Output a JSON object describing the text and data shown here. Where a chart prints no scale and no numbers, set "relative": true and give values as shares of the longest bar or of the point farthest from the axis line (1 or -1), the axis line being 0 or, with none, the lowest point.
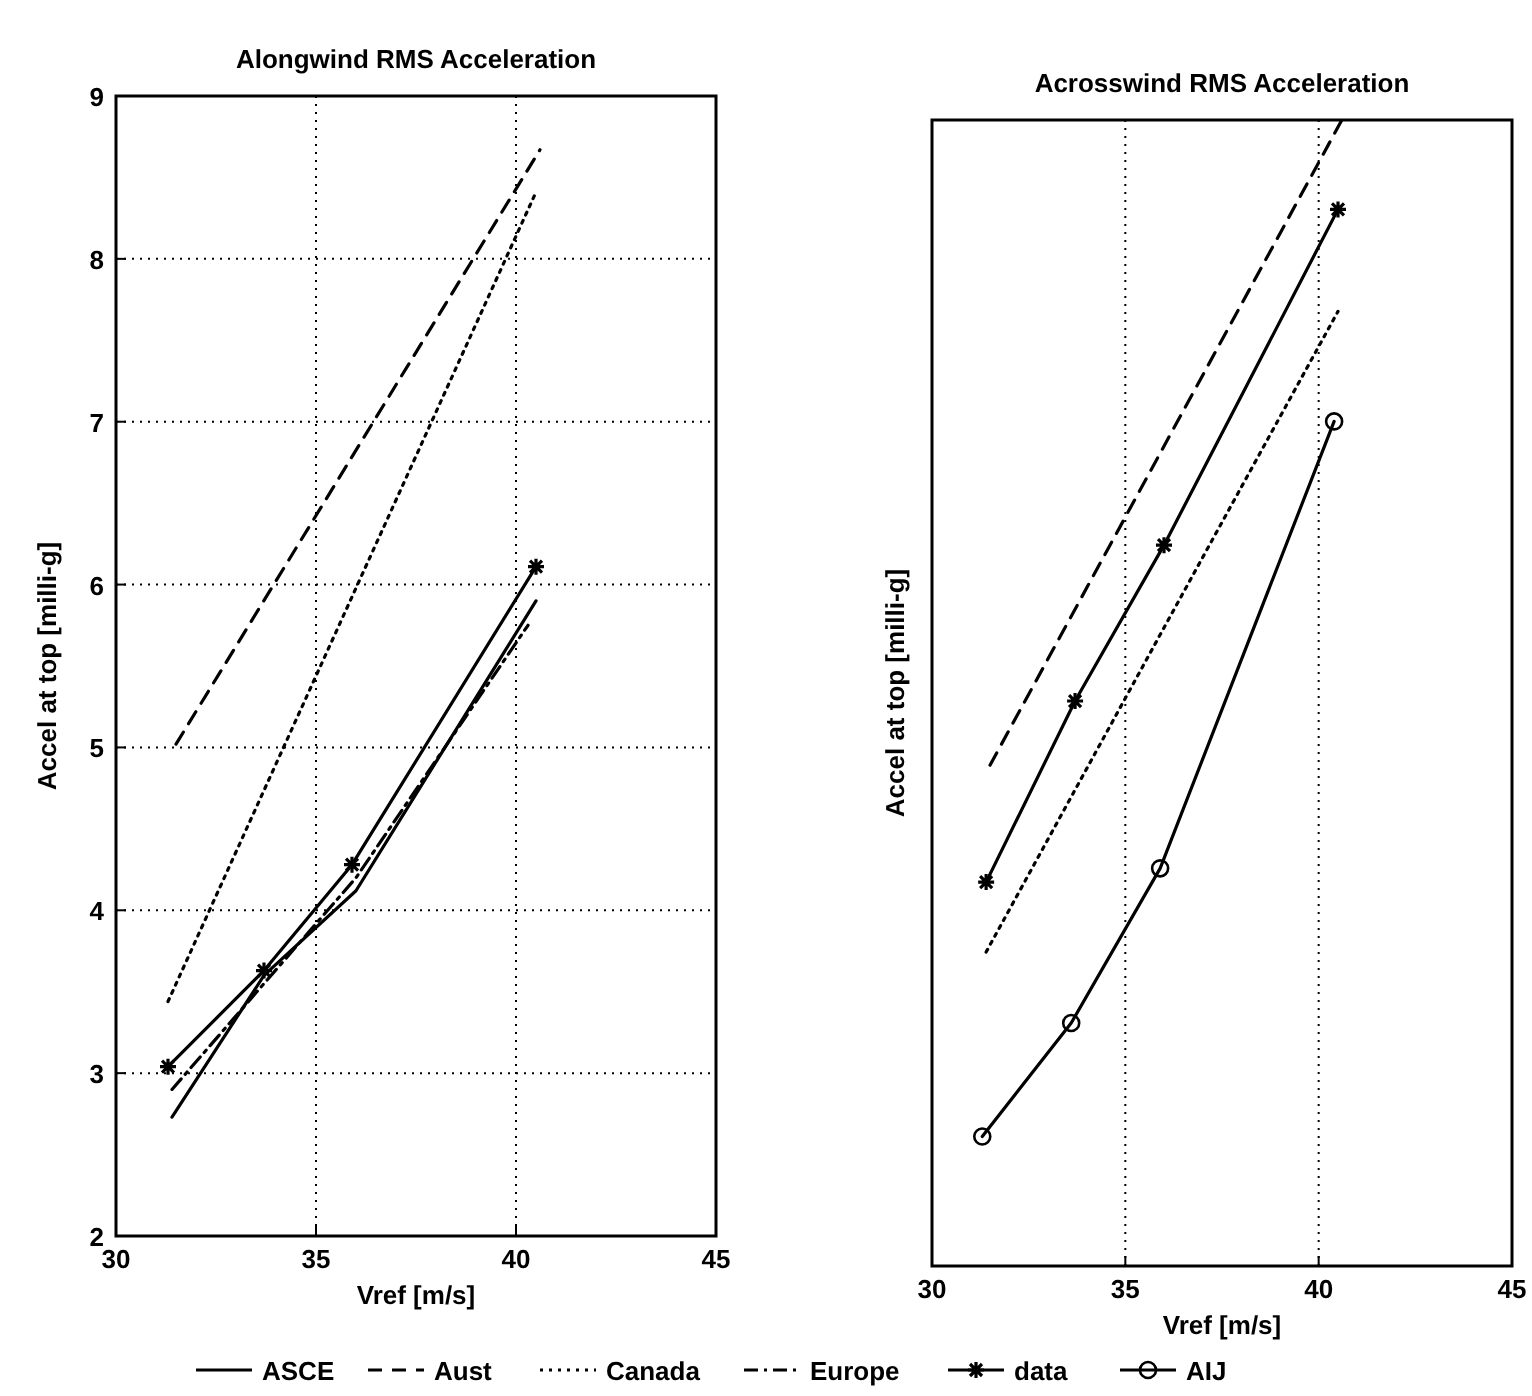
{
  "chart_data": [
    {
      "type": "line",
      "title": "Alongwind RMS Acceleration",
      "xlabel": "Vref [m/s]",
      "ylabel": "Accel at top [milli-g]",
      "xlim": [
        30,
        45
      ],
      "xticks": [
        30,
        35,
        40,
        45
      ],
      "ylim": [
        2,
        9
      ],
      "yticks": [
        2,
        3,
        4,
        5,
        6,
        7,
        8,
        9
      ],
      "grid": true,
      "legend": "bottom",
      "series": [
        {
          "name": "ASCE",
          "color": "#000000",
          "line_style": "solid",
          "marker": "none",
          "x": [
            31.4,
            33.7,
            36,
            40.5
          ],
          "values": [
            2.73,
            3.6,
            4.12,
            5.9
          ]
        },
        {
          "name": "Aust",
          "color": "#000000",
          "line_style": "dashed",
          "marker": "none",
          "x": [
            31.5,
            40.6
          ],
          "values": [
            5.02,
            8.67
          ]
        },
        {
          "name": "Canada",
          "color": "#000000",
          "line_style": "dotted",
          "marker": "none",
          "x": [
            31.3,
            40.5
          ],
          "values": [
            3.44,
            8.41
          ]
        },
        {
          "name": "Europe",
          "color": "#000000",
          "line_style": "dashdot",
          "marker": "none",
          "x": [
            31.4,
            33.7,
            36,
            40.3
          ],
          "values": [
            2.9,
            3.55,
            4.2,
            5.75
          ]
        },
        {
          "name": "data",
          "color": "#000000",
          "line_style": "solid",
          "marker": "cross",
          "x": [
            31.3,
            33.7,
            35.9,
            40.5
          ],
          "values": [
            3.04,
            3.63,
            4.28,
            6.11
          ]
        }
      ]
    },
    {
      "type": "line",
      "title": "Acrosswind RMS Acceleration",
      "xlabel": "Vref [m/s]",
      "ylabel": "Accel at top [milli-g]",
      "xlim": [
        30,
        45
      ],
      "xticks": [
        30,
        35,
        40,
        45
      ],
      "relative": true,
      "grid": "x",
      "legend": "bottom",
      "series": [
        {
          "name": "Aust",
          "color": "#000000",
          "line_style": "dashed",
          "marker": "none",
          "x": [
            31.5,
            40.6
          ],
          "values": [
            0.437,
            1
          ]
        },
        {
          "name": "Canada",
          "color": "#000000",
          "line_style": "dotted",
          "marker": "none",
          "x": [
            31.4,
            36,
            40.5
          ],
          "values": [
            0.274,
            0.557,
            0.833
          ]
        },
        {
          "name": "AIJ",
          "color": "#000000",
          "line_style": "solid",
          "marker": "circle",
          "x": [
            31.3,
            33.6,
            35.9,
            40.4
          ],
          "values": [
            0.113,
            0.212,
            0.347,
            0.737
          ]
        },
        {
          "name": "data",
          "color": "#000000",
          "line_style": "solid",
          "marker": "cross",
          "x": [
            31.4,
            33.7,
            36,
            40.5
          ],
          "values": [
            0.335,
            0.493,
            0.629,
            0.922
          ]
        }
      ]
    }
  ]
}
